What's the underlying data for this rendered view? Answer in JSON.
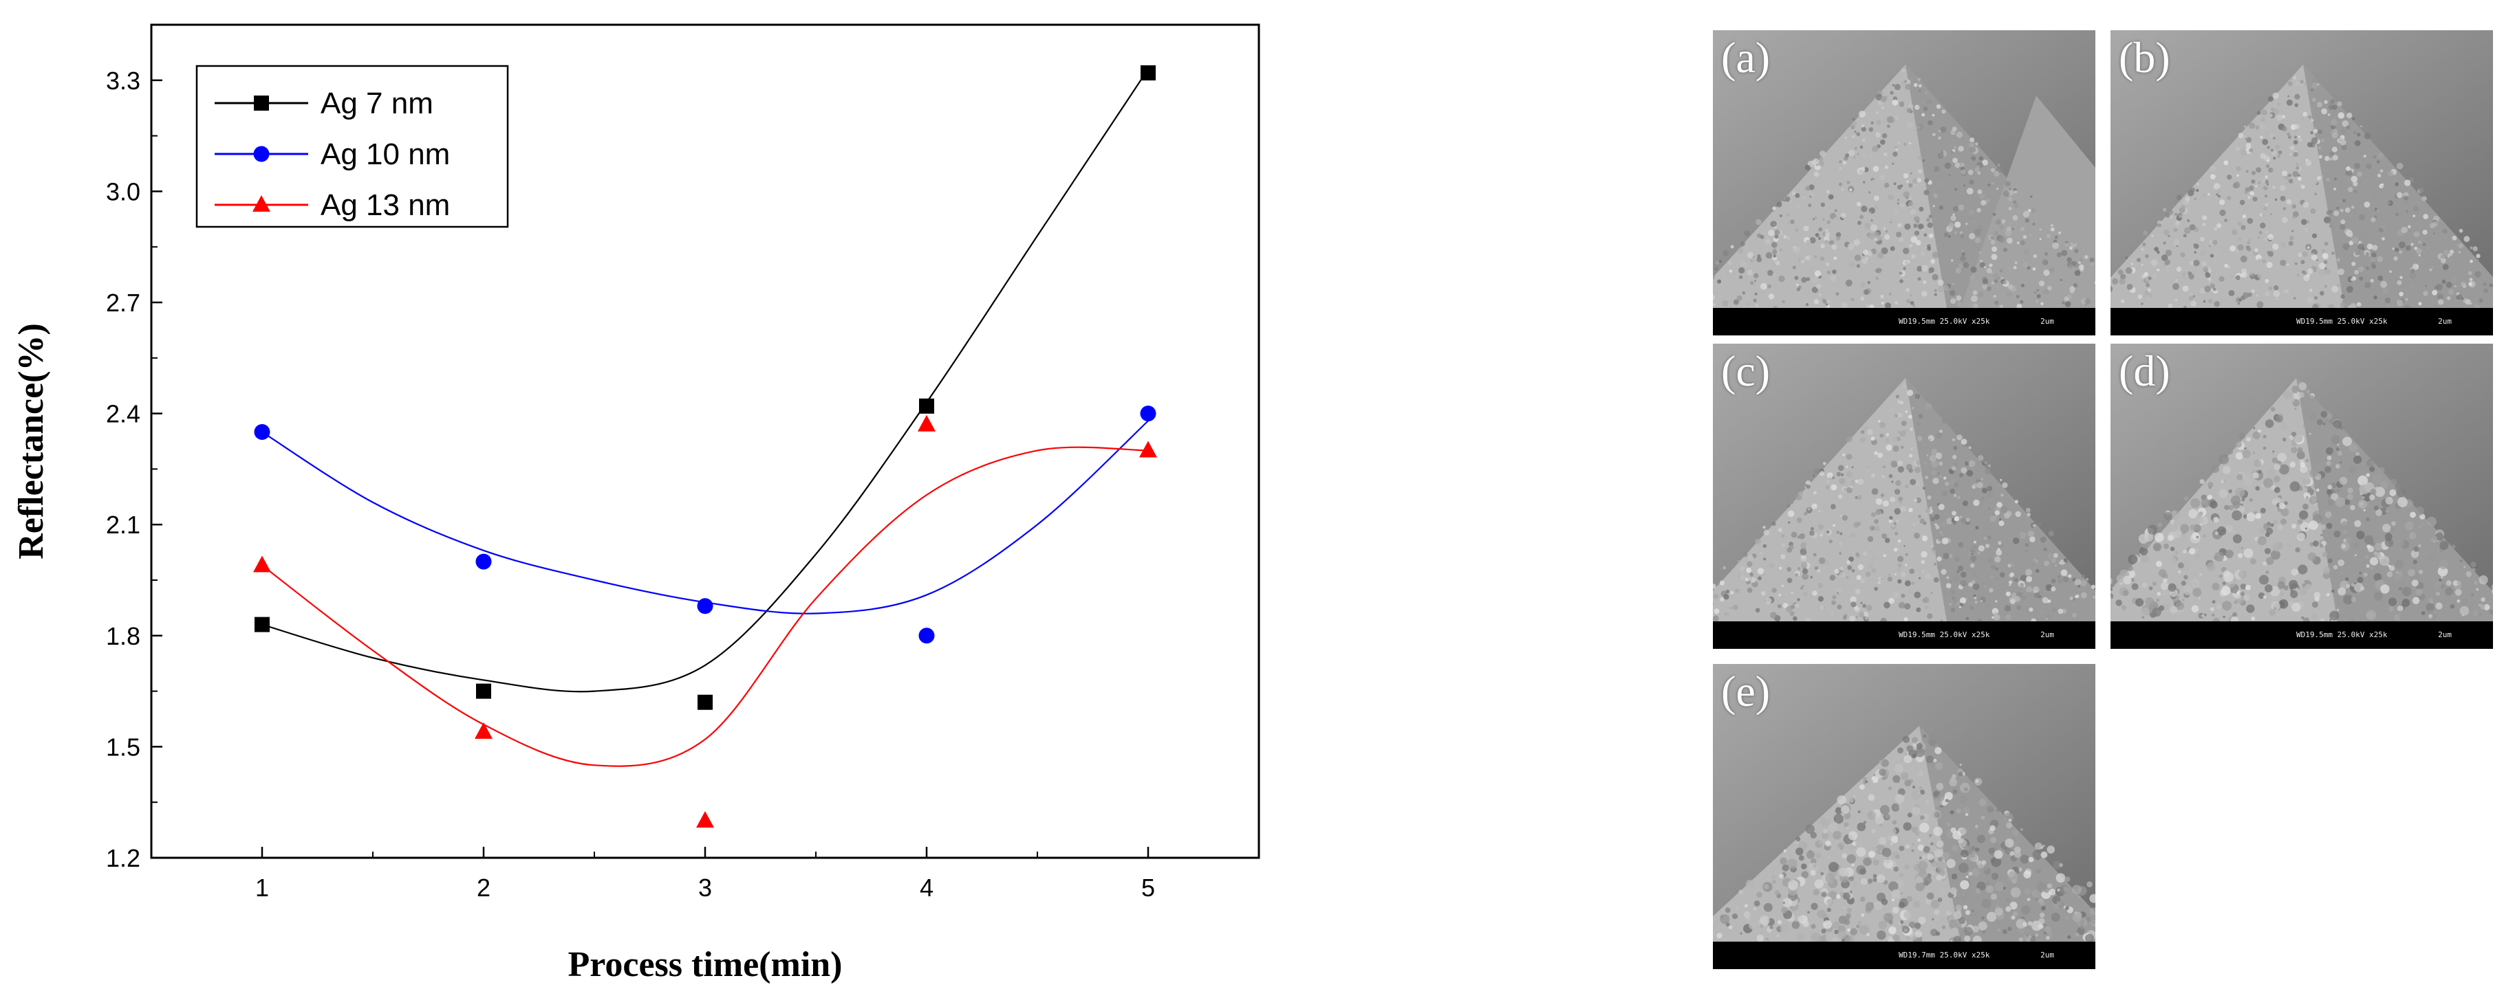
{
  "chart_data": {
    "type": "scatter",
    "xlabel": "Process time(min)",
    "ylabel": "Reflectance(%)",
    "xlim": [
      0.5,
      5.5
    ],
    "ylim": [
      1.2,
      3.45
    ],
    "x_ticks": [
      1,
      2,
      3,
      4,
      5
    ],
    "y_ticks": [
      1.2,
      1.5,
      1.8,
      2.1,
      2.4,
      2.7,
      3.0,
      3.3
    ],
    "x_tick_labels": [
      "1",
      "2",
      "3",
      "4",
      "5"
    ],
    "y_tick_labels": [
      "1.2",
      "1.5",
      "1.8",
      "2.1",
      "2.4",
      "2.7",
      "3.0",
      "3.3"
    ],
    "legend_position": "top-left",
    "grid": false,
    "fit_curves": "smooth",
    "series": [
      {
        "name": "Ag 7 nm",
        "color": "#000000",
        "marker": "square",
        "x": [
          1,
          2,
          3,
          4,
          5
        ],
        "values": [
          1.83,
          1.65,
          1.62,
          2.42,
          3.32
        ],
        "fit": [
          [
            1,
            1.83
          ],
          [
            1.5,
            1.74
          ],
          [
            2,
            1.68
          ],
          [
            2.5,
            1.65
          ],
          [
            3,
            1.72
          ],
          [
            3.5,
            2.02
          ],
          [
            4,
            2.43
          ],
          [
            4.5,
            2.88
          ],
          [
            5,
            3.33
          ]
        ]
      },
      {
        "name": "Ag 10 nm",
        "color": "#0000ff",
        "marker": "circle",
        "x": [
          1,
          2,
          3,
          4,
          5
        ],
        "values": [
          2.35,
          2.0,
          1.88,
          1.8,
          2.4
        ],
        "fit": [
          [
            1,
            2.35
          ],
          [
            1.5,
            2.16
          ],
          [
            2,
            2.03
          ],
          [
            2.5,
            1.95
          ],
          [
            3,
            1.89
          ],
          [
            3.5,
            1.86
          ],
          [
            4,
            1.91
          ],
          [
            4.5,
            2.1
          ],
          [
            5,
            2.38
          ]
        ]
      },
      {
        "name": "Ag 13 nm",
        "color": "#ff0000",
        "marker": "triangle",
        "x": [
          1,
          2,
          3,
          4,
          5
        ],
        "values": [
          1.99,
          1.54,
          1.3,
          2.37,
          2.3
        ],
        "fit": [
          [
            1,
            1.99
          ],
          [
            1.5,
            1.76
          ],
          [
            2,
            1.56
          ],
          [
            2.5,
            1.45
          ],
          [
            3,
            1.52
          ],
          [
            3.5,
            1.9
          ],
          [
            4,
            2.18
          ],
          [
            4.5,
            2.3
          ],
          [
            5,
            2.3
          ]
        ]
      }
    ]
  },
  "sem_panels": [
    {
      "label": "(a)",
      "info": "WD19.5mm 25.0kV x25k",
      "scale": "2um"
    },
    {
      "label": "(b)",
      "info": "WD19.5mm 25.0kV x25k",
      "scale": "2um"
    },
    {
      "label": "(c)",
      "info": "WD19.5mm 25.0kV x25k",
      "scale": "2um"
    },
    {
      "label": "(d)",
      "info": "WD19.5mm 25.0kV x25k",
      "scale": "2um"
    },
    {
      "label": "(e)",
      "info": "WD19.7mm 25.0kV x25k",
      "scale": "2um"
    }
  ]
}
